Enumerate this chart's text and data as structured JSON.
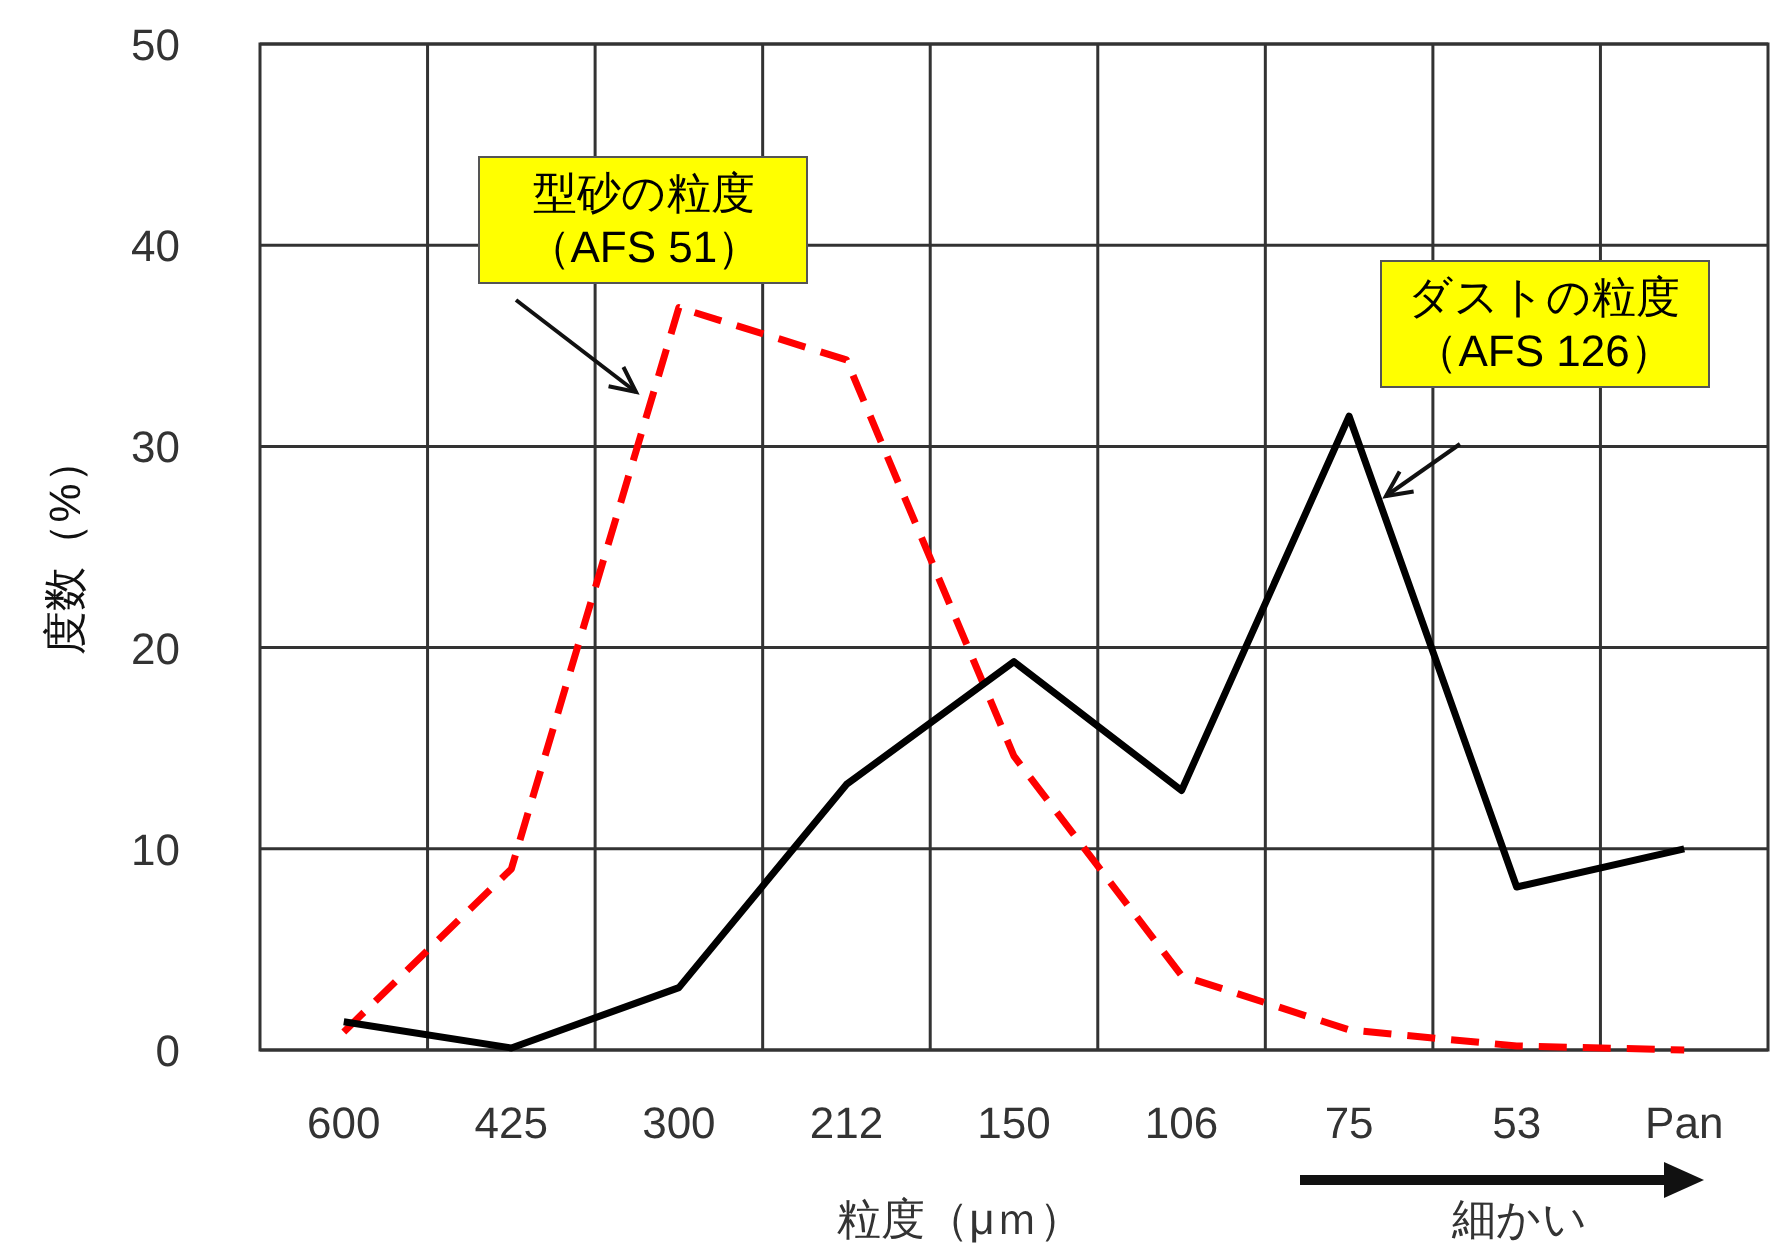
{
  "chart_data": {
    "type": "line",
    "xlabel": "粒度（μｍ）",
    "ylabel": "度数（%）",
    "categories": [
      "600",
      "425",
      "300",
      "212",
      "150",
      "106",
      "75",
      "53",
      "Pan"
    ],
    "series": [
      {
        "name": "型砂の粒度（AFS 51）",
        "color": "#ff0000",
        "line_style": "dashed",
        "values": [
          0.9,
          9.0,
          36.9,
          34.3,
          14.6,
          3.7,
          1.0,
          0.2,
          0
        ]
      },
      {
        "name": "ダストの粒度（AFS 126）",
        "color": "#000000",
        "line_style": "solid",
        "values": [
          1.4,
          0.1,
          3.1,
          13.2,
          19.3,
          12.9,
          31.5,
          8.1,
          10.0
        ]
      }
    ],
    "ylim": [
      0,
      50
    ],
    "yticks": [
      0,
      10,
      20,
      30,
      40,
      50
    ],
    "grid": true,
    "marker": "none",
    "annotations": [
      "細かい"
    ]
  }
}
